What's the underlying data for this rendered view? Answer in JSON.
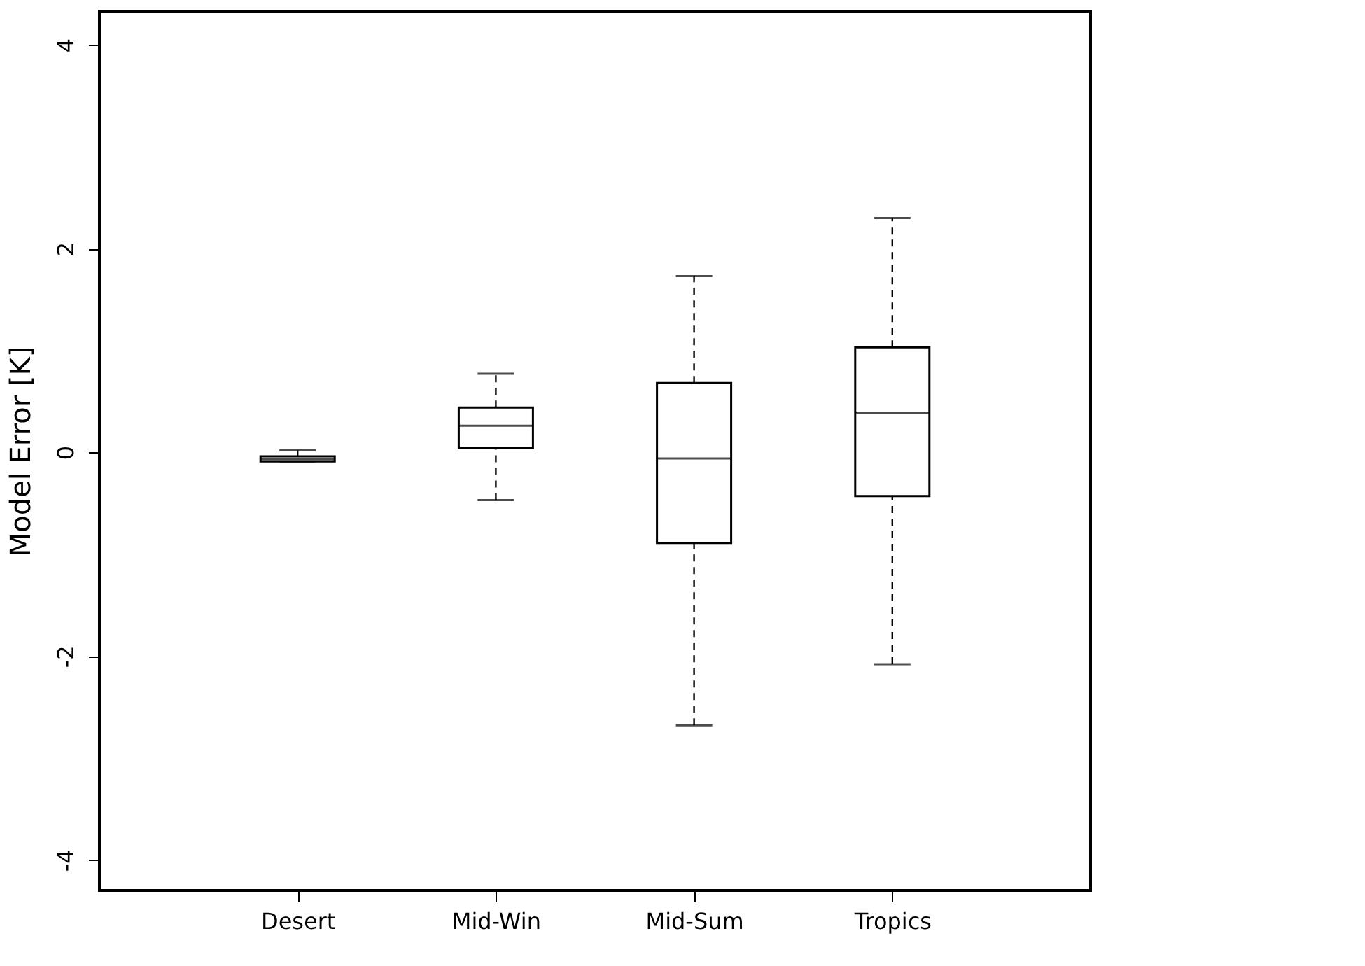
{
  "chart_data": {
    "type": "box",
    "ylabel": "Model Error [K]",
    "categories": [
      "Desert",
      "Mid-Win",
      "Mid-Sum",
      "Tropics"
    ],
    "boxes": [
      {
        "low": -0.09,
        "q1": -0.09,
        "median": -0.07,
        "q3": -0.04,
        "high": 0.02
      },
      {
        "low": -0.47,
        "q1": 0.04,
        "median": 0.26,
        "q3": 0.44,
        "high": 0.77
      },
      {
        "low": -2.68,
        "q1": -0.89,
        "median": -0.06,
        "q3": 0.68,
        "high": 1.73
      },
      {
        "low": -2.08,
        "q1": -0.43,
        "median": 0.39,
        "q3": 1.03,
        "high": 2.3
      }
    ],
    "ylim": [
      -4.3,
      4.33
    ],
    "yticks": [
      -4,
      -2,
      0,
      2,
      4
    ],
    "grid": false,
    "line_style": "dashed",
    "color": "#ffffff"
  }
}
